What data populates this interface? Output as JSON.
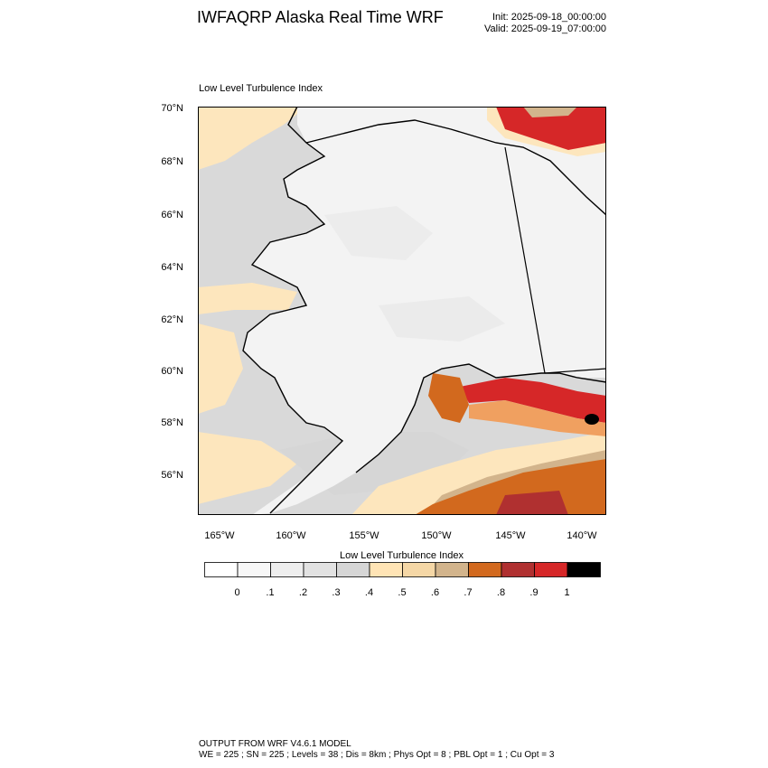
{
  "header": {
    "title": "IWFAQRP Alaska Real Time WRF",
    "init": "Init: 2025-09-18_00:00:00",
    "valid": "Valid: 2025-09-19_07:00:00"
  },
  "plot": {
    "label": "Low Level Turbulence Index",
    "lat_labels": [
      "70°N",
      "68°N",
      "66°N",
      "64°N",
      "62°N",
      "60°N",
      "58°N",
      "56°N"
    ],
    "lon_labels": [
      "165°W",
      "160°W",
      "155°W",
      "150°W",
      "145°W",
      "140°W"
    ]
  },
  "colorbar": {
    "title": "Low Level Turbulence Index",
    "labels": [
      "0",
      ".1",
      ".2",
      ".3",
      ".4",
      ".5",
      ".6",
      ".7",
      ".8",
      ".9",
      "1"
    ],
    "colors": [
      "#ffffff",
      "#f7f7f7",
      "#eeeeee",
      "#e2e2e2",
      "#d6d6d6",
      "#ffe4b5",
      "#f5d7a6",
      "#d2b48c",
      "#d2691e",
      "#b03030",
      "#d62728",
      "#000000"
    ]
  },
  "footer": {
    "line1": "OUTPUT FROM WRF V4.6.1 MODEL",
    "line2": "WE = 225 ; SN = 225 ; Levels = 38 ; Dis = 8km ; Phys Opt = 8 ; PBL Opt = 1 ; Cu Opt = 3"
  }
}
